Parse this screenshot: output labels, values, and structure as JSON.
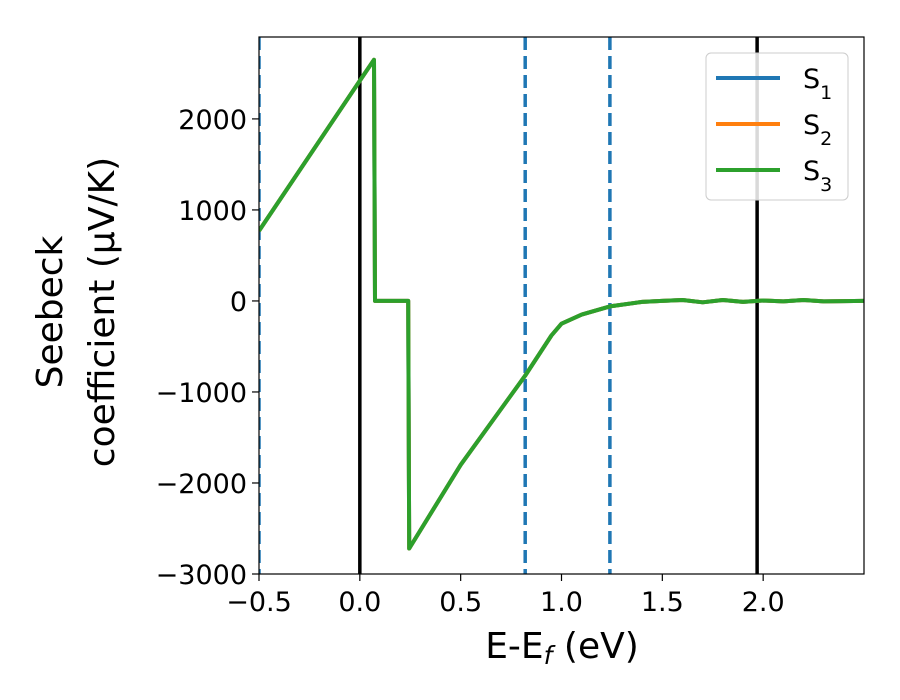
{
  "chart_data": {
    "type": "line",
    "xlabel": {
      "main": "E-E",
      "sub": "f",
      "tail": " (eV)"
    },
    "ylabel": {
      "line1": "Seebeck",
      "line2": "coefficient  (μV/K)"
    },
    "xlim": [
      -0.5,
      2.5
    ],
    "ylim": [
      -3000,
      2900
    ],
    "x_ticks": [
      -0.5,
      0.0,
      0.5,
      1.0,
      1.5,
      2.0
    ],
    "x_tick_labels": [
      "−0.5",
      "0.0",
      "0.5",
      "1.0",
      "1.5",
      "2.0"
    ],
    "y_ticks": [
      -3000,
      -2000,
      -1000,
      0,
      1000,
      2000
    ],
    "y_tick_labels": [
      "−3000",
      "−2000",
      "−1000",
      "0",
      "1000",
      "2000"
    ],
    "grid": false,
    "legend_position": "top-right",
    "vertical_lines": [
      {
        "x": -0.5,
        "style": "dashed",
        "color": "#1f77b4"
      },
      {
        "x": 0.0,
        "style": "solid",
        "color": "#000000"
      },
      {
        "x": 0.82,
        "style": "dashed",
        "color": "#1f77b4"
      },
      {
        "x": 1.24,
        "style": "dashed",
        "color": "#1f77b4"
      },
      {
        "x": 1.97,
        "style": "solid",
        "color": "#000000"
      }
    ],
    "series": [
      {
        "name": {
          "main": "S",
          "sub": "1"
        },
        "color": "#1f77b4",
        "x": [
          -0.5,
          0.0,
          0.07,
          0.075,
          0.24,
          0.245,
          0.5,
          0.82,
          0.95,
          1.0,
          1.1,
          1.24,
          1.4,
          1.5,
          1.6,
          1.7,
          1.8,
          1.9,
          2.0,
          2.1,
          2.2,
          2.3,
          2.5
        ],
        "y": [
          770,
          2420,
          2650,
          0,
          0,
          -2720,
          -1800,
          -820,
          -380,
          -250,
          -150,
          -60,
          -10,
          0,
          10,
          -15,
          10,
          -10,
          5,
          -5,
          10,
          -5,
          0
        ]
      },
      {
        "name": {
          "main": "S",
          "sub": "2"
        },
        "color": "#ff7f0e",
        "x": [
          -0.5,
          0.0,
          0.07,
          0.075,
          0.24,
          0.245,
          0.5,
          0.82,
          0.95,
          1.0,
          1.1,
          1.24,
          1.4,
          1.5,
          1.6,
          1.7,
          1.8,
          1.9,
          2.0,
          2.1,
          2.2,
          2.3,
          2.5
        ],
        "y": [
          770,
          2420,
          2650,
          0,
          0,
          -2720,
          -1800,
          -820,
          -380,
          -250,
          -150,
          -60,
          -10,
          0,
          10,
          -15,
          10,
          -10,
          5,
          -5,
          10,
          -5,
          0
        ]
      },
      {
        "name": {
          "main": "S",
          "sub": "3"
        },
        "color": "#2ca02c",
        "x": [
          -0.5,
          0.0,
          0.07,
          0.075,
          0.24,
          0.245,
          0.5,
          0.82,
          0.95,
          1.0,
          1.1,
          1.24,
          1.4,
          1.5,
          1.6,
          1.7,
          1.8,
          1.9,
          2.0,
          2.1,
          2.2,
          2.3,
          2.5
        ],
        "y": [
          770,
          2420,
          2650,
          0,
          0,
          -2720,
          -1800,
          -820,
          -380,
          -250,
          -150,
          -60,
          -10,
          0,
          10,
          -15,
          10,
          -10,
          5,
          -5,
          10,
          -5,
          0
        ]
      }
    ]
  }
}
